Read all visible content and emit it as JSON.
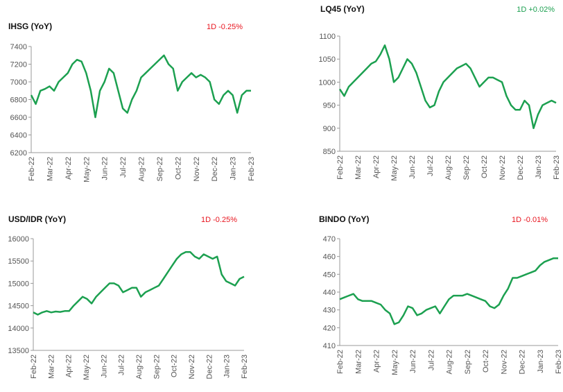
{
  "chart_data": [
    {
      "type": "line",
      "title": "IHSG (YoY)",
      "annotation": "1D -0.25%",
      "annotation_color": "#e8141e",
      "color": "#1ca050",
      "xticks": [
        "Feb-22",
        "Mar-22",
        "Apr-22",
        "May-22",
        "Jun-22",
        "Jul-22",
        "Aug-22",
        "Sep-22",
        "Oct-22",
        "Nov-22",
        "Dec-22",
        "Jan-23",
        "Feb-23"
      ],
      "ylim": [
        6200,
        7400
      ],
      "yticks": [
        6200,
        6400,
        6600,
        6800,
        7000,
        7200,
        7400
      ],
      "values": [
        6850,
        6750,
        6900,
        6920,
        6950,
        6900,
        7000,
        7050,
        7100,
        7200,
        7250,
        7230,
        7100,
        6900,
        6600,
        6900,
        7000,
        7150,
        7100,
        6900,
        6700,
        6650,
        6800,
        6900,
        7050,
        7100,
        7150,
        7200,
        7250,
        7300,
        7200,
        7150,
        6900,
        7000,
        7050,
        7100,
        7050,
        7080,
        7050,
        7000,
        6800,
        6750,
        6850,
        6900,
        6850,
        6650,
        6850,
        6900,
        6900
      ]
    },
    {
      "type": "line",
      "title": "LQ45 (YoY)",
      "annotation": "1D +0.02%",
      "annotation_color": "#1ca050",
      "color": "#1ca050",
      "xticks": [
        "Feb-22",
        "Mar-22",
        "Apr-22",
        "May-22",
        "Jun-22",
        "Jul-22",
        "Aug-22",
        "Sep-22",
        "Oct-22",
        "Nov-22",
        "Dec-22",
        "Jan-23",
        "Feb-23"
      ],
      "ylim": [
        850,
        1100
      ],
      "yticks": [
        850,
        900,
        950,
        1000,
        1050,
        1100
      ],
      "values": [
        985,
        970,
        990,
        1000,
        1010,
        1020,
        1030,
        1040,
        1045,
        1060,
        1080,
        1050,
        1000,
        1010,
        1030,
        1050,
        1040,
        1020,
        990,
        960,
        945,
        950,
        980,
        1000,
        1010,
        1020,
        1030,
        1035,
        1040,
        1030,
        1010,
        990,
        1000,
        1010,
        1010,
        1005,
        1000,
        970,
        950,
        940,
        940,
        960,
        950,
        900,
        930,
        950,
        955,
        960,
        955
      ]
    },
    {
      "type": "line",
      "title": "USD/IDR (YoY)",
      "annotation": "1D -0.25%",
      "annotation_color": "#e8141e",
      "color": "#1ca050",
      "xticks": [
        "Feb-22",
        "Mar-22",
        "Apr-22",
        "May-22",
        "Jun-22",
        "Jul-22",
        "Aug-22",
        "Sep-22",
        "Oct-22",
        "Nov-22",
        "Dec-22",
        "Jan-23",
        "Feb-23"
      ],
      "ylim": [
        13500,
        16000
      ],
      "yticks": [
        13500,
        14000,
        14500,
        15000,
        15500,
        16000
      ],
      "values": [
        14350,
        14300,
        14350,
        14380,
        14350,
        14370,
        14360,
        14380,
        14380,
        14500,
        14600,
        14700,
        14650,
        14550,
        14700,
        14800,
        14900,
        15000,
        15000,
        14950,
        14800,
        14850,
        14900,
        14900,
        14700,
        14800,
        14850,
        14900,
        14950,
        15100,
        15250,
        15400,
        15550,
        15650,
        15700,
        15700,
        15600,
        15550,
        15650,
        15600,
        15550,
        15600,
        15200,
        15050,
        15000,
        14950,
        15100,
        15150
      ]
    },
    {
      "type": "line",
      "title": "BINDO (YoY)",
      "annotation": "1D -0.01%",
      "annotation_color": "#e8141e",
      "color": "#1ca050",
      "xticks": [
        "Feb-22",
        "Mar-22",
        "Apr-22",
        "May-22",
        "Jun-22",
        "Jul-22",
        "Aug-22",
        "Sep-22",
        "Oct-22",
        "Nov-22",
        "Dec-22",
        "Jan-23",
        "Feb-23"
      ],
      "ylim": [
        410,
        470
      ],
      "yticks": [
        410,
        420,
        430,
        440,
        450,
        460,
        470
      ],
      "values": [
        436,
        437,
        438,
        439,
        436,
        435,
        435,
        435,
        434,
        433,
        430,
        428,
        422,
        423,
        427,
        432,
        431,
        427,
        428,
        430,
        431,
        432,
        428,
        432,
        436,
        438,
        438,
        438,
        439,
        438,
        437,
        436,
        435,
        432,
        431,
        433,
        438,
        442,
        448,
        448,
        449,
        450,
        451,
        452,
        455,
        457,
        458,
        459,
        459
      ]
    }
  ]
}
